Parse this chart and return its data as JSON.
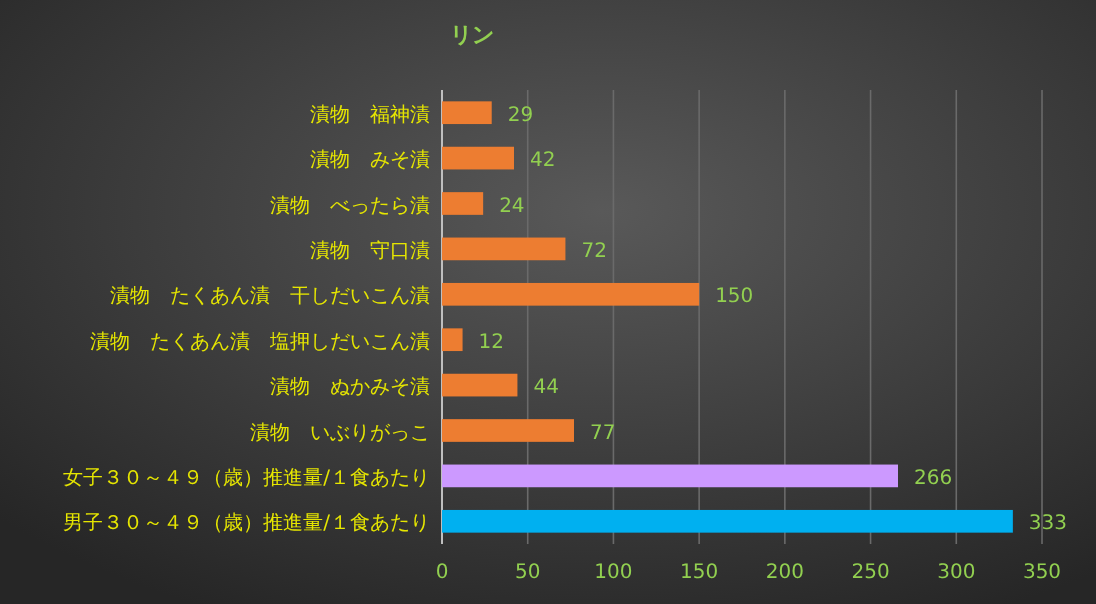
{
  "chart_data": {
    "type": "bar",
    "orientation": "horizontal",
    "title": "リン",
    "categories": [
      "漬物　福神漬",
      "漬物　みそ漬",
      "漬物　べったら漬",
      "漬物　守口漬",
      "漬物　たくあん漬　干しだいこん漬",
      "漬物　たくあん漬　塩押しだいこん漬",
      "漬物　ぬかみそ漬",
      "漬物　いぶりがっこ",
      "女子３０～４９（歳）推進量/１食あたり",
      "男子３０～４９（歳）推進量/１食あたり"
    ],
    "values": [
      29,
      42,
      24,
      72,
      150,
      12,
      44,
      77,
      266,
      333
    ],
    "colors": [
      "#ed7d31",
      "#ed7d31",
      "#ed7d31",
      "#ed7d31",
      "#ed7d31",
      "#ed7d31",
      "#ed7d31",
      "#ed7d31",
      "#cc99ff",
      "#00b0f0"
    ],
    "xlim": [
      0,
      350
    ],
    "xticks": [
      0,
      50,
      100,
      150,
      200,
      250,
      300,
      350
    ],
    "grid": "x",
    "data_labels": true
  }
}
